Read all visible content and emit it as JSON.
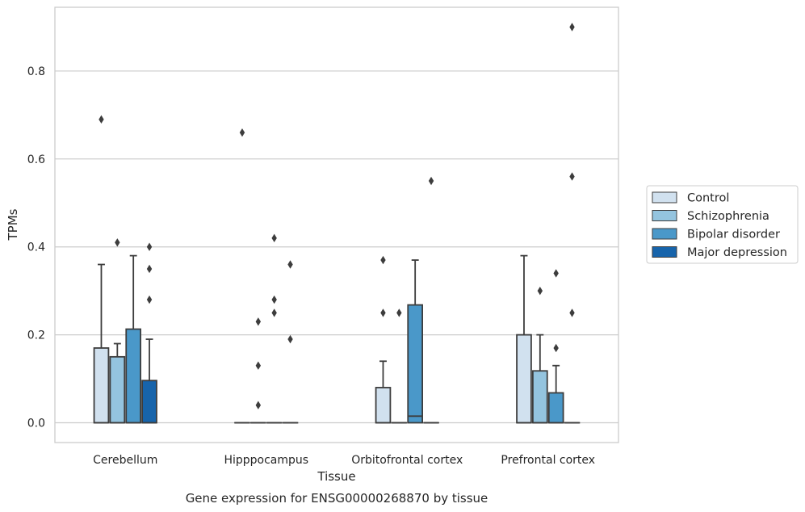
{
  "chart_data": {
    "type": "box",
    "title": "",
    "caption": "Gene expression for ENSG00000268870 by tissue",
    "xlabel": "Tissue",
    "ylabel": "TPMs",
    "ylim": [
      -0.045,
      0.945
    ],
    "yticks": [
      0.0,
      0.2,
      0.4,
      0.6,
      0.8
    ],
    "ytick_labels": [
      "0.0",
      "0.2",
      "0.4",
      "0.6",
      "0.8"
    ],
    "grid": "horizontal",
    "legend_position": "right",
    "categories": [
      "Cerebellum",
      "Hipppocampus",
      "Orbitofrontal cortex",
      "Prefrontal cortex"
    ],
    "series": [
      {
        "name": "Control",
        "color": "#d1e1ef",
        "boxes": [
          {
            "min": 0.0,
            "q1": 0.0,
            "median": 0.0,
            "q3": 0.17,
            "max": 0.36,
            "outliers": [
              0.69
            ]
          },
          {
            "min": 0.0,
            "q1": 0.0,
            "median": 0.0,
            "q3": 0.0,
            "max": 0.0,
            "outliers": [
              0.66
            ]
          },
          {
            "min": 0.0,
            "q1": 0.0,
            "median": 0.0,
            "q3": 0.08,
            "max": 0.14,
            "outliers": [
              0.37,
              0.25
            ]
          },
          {
            "min": 0.0,
            "q1": 0.0,
            "median": 0.0,
            "q3": 0.2,
            "max": 0.38,
            "outliers": []
          }
        ]
      },
      {
        "name": "Schizophrenia",
        "color": "#94c4df",
        "boxes": [
          {
            "min": 0.0,
            "q1": 0.0,
            "median": 0.0,
            "q3": 0.15,
            "max": 0.18,
            "outliers": [
              0.41
            ]
          },
          {
            "min": 0.0,
            "q1": 0.0,
            "median": 0.0,
            "q3": 0.0,
            "max": 0.0,
            "outliers": [
              0.23,
              0.13,
              0.04
            ]
          },
          {
            "min": 0.0,
            "q1": 0.0,
            "median": 0.0,
            "q3": 0.0,
            "max": 0.0,
            "outliers": [
              0.25
            ]
          },
          {
            "min": 0.0,
            "q1": 0.0,
            "median": 0.0,
            "q3": 0.118,
            "max": 0.2,
            "outliers": [
              0.3
            ]
          }
        ]
      },
      {
        "name": "Bipolar disorder",
        "color": "#4a98c9",
        "boxes": [
          {
            "min": 0.0,
            "q1": 0.0,
            "median": 0.0,
            "q3": 0.213,
            "max": 0.38,
            "outliers": []
          },
          {
            "min": 0.0,
            "q1": 0.0,
            "median": 0.0,
            "q3": 0.0,
            "max": 0.0,
            "outliers": [
              0.42,
              0.28,
              0.25
            ]
          },
          {
            "min": 0.0,
            "q1": 0.0,
            "median": 0.015,
            "q3": 0.268,
            "max": 0.37,
            "outliers": []
          },
          {
            "min": 0.0,
            "q1": 0.0,
            "median": 0.0,
            "q3": 0.068,
            "max": 0.13,
            "outliers": [
              0.34,
              0.17
            ]
          }
        ]
      },
      {
        "name": "Major depression",
        "color": "#1764ab",
        "boxes": [
          {
            "min": 0.0,
            "q1": 0.0,
            "median": 0.0,
            "q3": 0.096,
            "max": 0.19,
            "outliers": [
              0.4,
              0.35,
              0.28
            ]
          },
          {
            "min": 0.0,
            "q1": 0.0,
            "median": 0.0,
            "q3": 0.0,
            "max": 0.0,
            "outliers": [
              0.36,
              0.19
            ]
          },
          {
            "min": 0.0,
            "q1": 0.0,
            "median": 0.0,
            "q3": 0.0,
            "max": 0.0,
            "outliers": [
              0.55
            ]
          },
          {
            "min": 0.0,
            "q1": 0.0,
            "median": 0.0,
            "q3": 0.0,
            "max": 0.0,
            "outliers": [
              0.9,
              0.56,
              0.25
            ]
          }
        ]
      }
    ]
  }
}
